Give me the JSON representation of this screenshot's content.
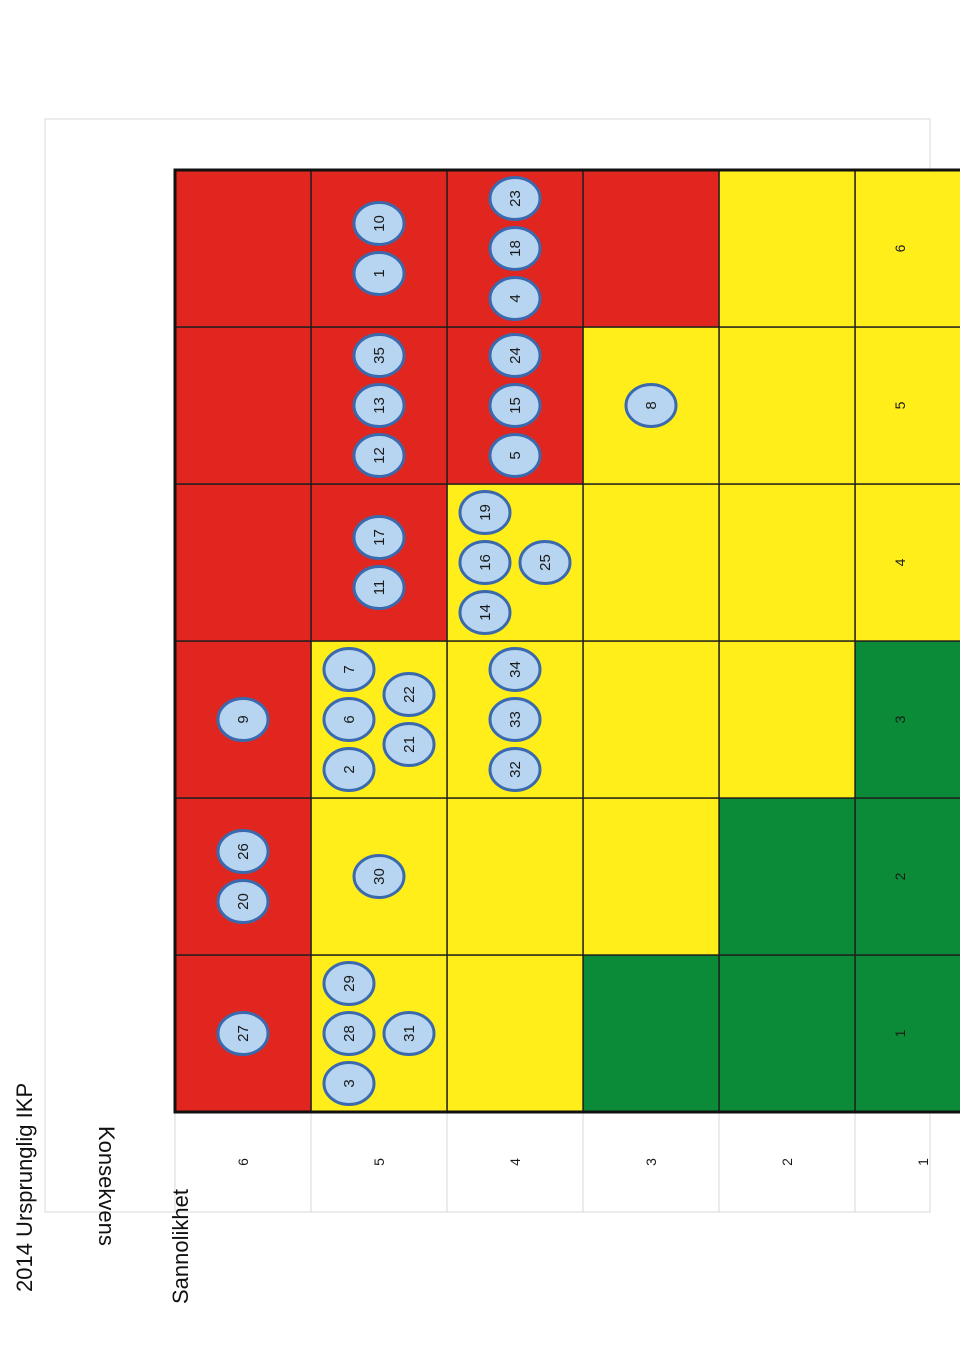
{
  "chart_data": {
    "type": "heatmap",
    "title": "2014 Ursprunglig IKP",
    "xlabel": "Sannolikhet",
    "ylabel": "Konsekvens",
    "x_ticks": [
      "1",
      "2",
      "3",
      "4",
      "5",
      "6"
    ],
    "y_ticks": [
      "1",
      "2",
      "3",
      "4",
      "5",
      "6"
    ],
    "orientation": "page rotated 90 degrees counter-clockwise",
    "colors": {
      "red": "#e0261f",
      "yellow": "#ffee1a",
      "green": "#0b8a37",
      "badge": "#b7d5f1",
      "badge_stroke": "#3b69ad"
    },
    "zones": [
      [
        "green",
        "green",
        "green",
        "yellow",
        "yellow",
        "yellow"
      ],
      [
        "green",
        "green",
        "yellow",
        "yellow",
        "yellow",
        "yellow"
      ],
      [
        "green",
        "yellow",
        "yellow",
        "yellow",
        "yellow",
        "red"
      ],
      [
        "yellow",
        "yellow",
        "yellow",
        "yellow",
        "red",
        "red"
      ],
      [
        "yellow",
        "yellow",
        "yellow",
        "red",
        "red",
        "red"
      ],
      [
        "red",
        "red",
        "red",
        "red",
        "red",
        "red"
      ]
    ],
    "risks": [
      {
        "id": "1",
        "sannolikhet": 6,
        "konsekvens": 5
      },
      {
        "id": "2",
        "sannolikhet": 3,
        "konsekvens": 5
      },
      {
        "id": "3",
        "sannolikhet": 1,
        "konsekvens": 5
      },
      {
        "id": "4",
        "sannolikhet": 6,
        "konsekvens": 4
      },
      {
        "id": "5",
        "sannolikhet": 5,
        "konsekvens": 4
      },
      {
        "id": "6",
        "sannolikhet": 3,
        "konsekvens": 5
      },
      {
        "id": "7",
        "sannolikhet": 3,
        "konsekvens": 5
      },
      {
        "id": "8",
        "sannolikhet": 5,
        "konsekvens": 3
      },
      {
        "id": "9",
        "sannolikhet": 3,
        "konsekvens": 6
      },
      {
        "id": "10",
        "sannolikhet": 6,
        "konsekvens": 5
      },
      {
        "id": "11",
        "sannolikhet": 4,
        "konsekvens": 5
      },
      {
        "id": "12",
        "sannolikhet": 5,
        "konsekvens": 5
      },
      {
        "id": "13",
        "sannolikhet": 5,
        "konsekvens": 5
      },
      {
        "id": "14",
        "sannolikhet": 4,
        "konsekvens": 4
      },
      {
        "id": "15",
        "sannolikhet": 5,
        "konsekvens": 4
      },
      {
        "id": "16",
        "sannolikhet": 4,
        "konsekvens": 4
      },
      {
        "id": "17",
        "sannolikhet": 4,
        "konsekvens": 5
      },
      {
        "id": "18",
        "sannolikhet": 6,
        "konsekvens": 4
      },
      {
        "id": "19",
        "sannolikhet": 4,
        "konsekvens": 4
      },
      {
        "id": "20",
        "sannolikhet": 2,
        "konsekvens": 6
      },
      {
        "id": "21",
        "sannolikhet": 3,
        "konsekvens": 5
      },
      {
        "id": "22",
        "sannolikhet": 3,
        "konsekvens": 5
      },
      {
        "id": "23",
        "sannolikhet": 6,
        "konsekvens": 4
      },
      {
        "id": "24",
        "sannolikhet": 5,
        "konsekvens": 4
      },
      {
        "id": "25",
        "sannolikhet": 4,
        "konsekvens": 4
      },
      {
        "id": "26",
        "sannolikhet": 2,
        "konsekvens": 6
      },
      {
        "id": "27",
        "sannolikhet": 1,
        "konsekvens": 6
      },
      {
        "id": "28",
        "sannolikhet": 1,
        "konsekvens": 5
      },
      {
        "id": "29",
        "sannolikhet": 1,
        "konsekvens": 5
      },
      {
        "id": "30",
        "sannolikhet": 2,
        "konsekvens": 5
      },
      {
        "id": "31",
        "sannolikhet": 1,
        "konsekvens": 5
      },
      {
        "id": "32",
        "sannolikhet": 3,
        "konsekvens": 4
      },
      {
        "id": "33",
        "sannolikhet": 3,
        "konsekvens": 4
      },
      {
        "id": "34",
        "sannolikhet": 3,
        "konsekvens": 4
      },
      {
        "id": "35",
        "sannolikhet": 5,
        "konsekvens": 5
      }
    ]
  }
}
